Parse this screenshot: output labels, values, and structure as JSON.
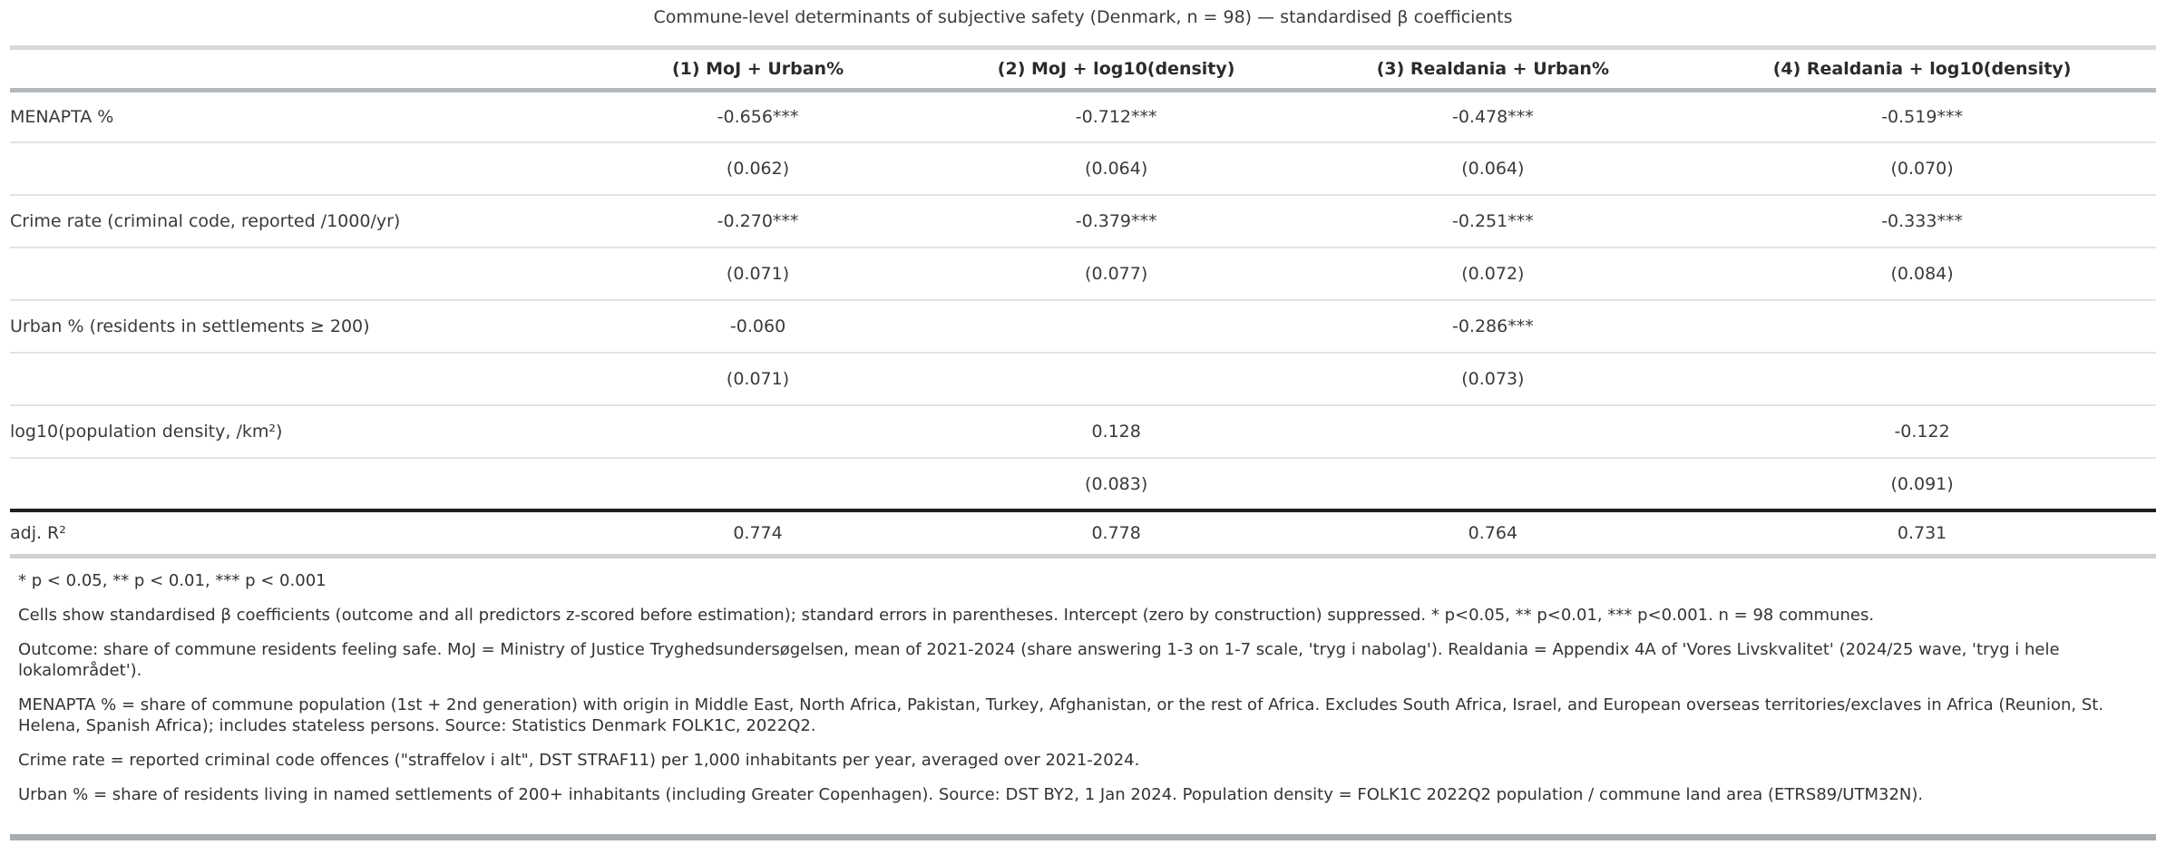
{
  "title": "Commune-level determinants of subjective safety (Denmark, n = 98) — standardised β coefficients",
  "table": {
    "columns": [
      "(1) MoJ + Urban%",
      "(2) MoJ + log10(density)",
      "(3) Realdania + Urban%",
      "(4) Realdania + log10(density)"
    ],
    "rows": [
      {
        "label": "MENAPTA %",
        "values": [
          "-0.656***",
          "-0.712***",
          "-0.478***",
          "-0.519***"
        ]
      },
      {
        "label": "",
        "values": [
          "(0.062)",
          "(0.064)",
          "(0.064)",
          "(0.070)"
        ]
      },
      {
        "label": "Crime rate (criminal code, reported /1000/yr)",
        "values": [
          "-0.270***",
          "-0.379***",
          "-0.251***",
          "-0.333***"
        ]
      },
      {
        "label": "",
        "values": [
          "(0.071)",
          "(0.077)",
          "(0.072)",
          "(0.084)"
        ]
      },
      {
        "label": "Urban % (residents in settlements ≥ 200)",
        "values": [
          "-0.060",
          "",
          "-0.286***",
          ""
        ]
      },
      {
        "label": "",
        "values": [
          "(0.071)",
          "",
          "(0.073)",
          ""
        ]
      },
      {
        "label": "log10(population density, /km²)",
        "values": [
          "",
          "0.128",
          "",
          "-0.122"
        ]
      },
      {
        "label": "",
        "values": [
          "",
          "(0.083)",
          "",
          "(0.091)"
        ]
      }
    ],
    "stats_row": {
      "label": "adj. R²",
      "values": [
        "0.774",
        "0.778",
        "0.764",
        "0.731"
      ]
    }
  },
  "footnotes": {
    "significance": "* p < 0.05, ** p < 0.01, *** p < 0.001",
    "notes": [
      "Cells show standardised β coefficients (outcome and all predictors z-scored before estimation); standard errors in parentheses. Intercept (zero by construction) suppressed. * p<0.05, ** p<0.01, *** p<0.001. n = 98 communes.",
      "Outcome: share of commune residents feeling safe. MoJ = Ministry of Justice Tryghedsundersøgelsen, mean of 2021-2024 (share answering 1-3 on 1-7 scale, 'tryg i nabolag'). Realdania = Appendix 4A of 'Vores Livskvalitet' (2024/25 wave, 'tryg i hele lokalområdet').",
      "MENAPTA % = share of commune population (1st + 2nd generation) with origin in Middle East, North Africa, Pakistan, Turkey, Afghanistan, or the rest of Africa. Excludes South Africa, Israel, and European overseas territories/exclaves in Africa (Reunion, St. Helena, Spanish Africa); includes stateless persons. Source: Statistics Denmark FOLK1C, 2022Q2.",
      "Crime rate = reported criminal code offences (\"straffelov i alt\", DST STRAF11) per 1,000 inhabitants per year, averaged over 2021-2024.",
      "Urban % = share of residents living in named settlements of 200+ inhabitants (including Greater Copenhagen). Source: DST BY2, 1 Jan 2024. Population density = FOLK1C 2022Q2 population / commune land area (ETRS89/UTM32N)."
    ]
  }
}
